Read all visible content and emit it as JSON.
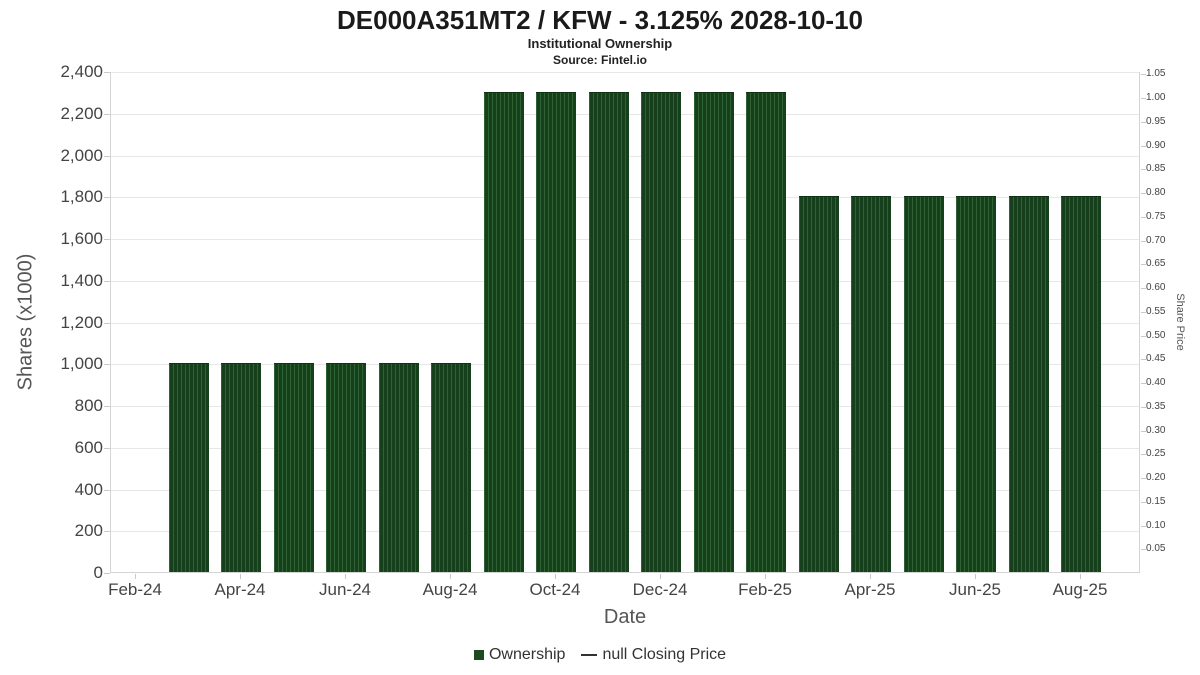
{
  "header": {
    "title": "DE000A351MT2 / KFW - 3.125% 2028-10-10",
    "subtitle": "Institutional Ownership",
    "source": "Source: Fintel.io"
  },
  "chart_data": {
    "type": "bar",
    "title": "DE000A351MT2 / KFW - 3.125% 2028-10-10",
    "subtitle": "Institutional Ownership",
    "source": "Source: Fintel.io",
    "xlabel": "Date",
    "left_axis": {
      "label": "Shares (x1000)",
      "min": 0,
      "max": 2400,
      "step": 200,
      "tick_labels": [
        "0",
        "200",
        "400",
        "600",
        "800",
        "1,000",
        "1,200",
        "1,400",
        "1,600",
        "1,800",
        "2,000",
        "2,200",
        "2,400"
      ]
    },
    "right_axis": {
      "label": "Share Price",
      "range": [
        0,
        1.055
      ],
      "tick_labels": [
        "0.05",
        "0.10",
        "0.15",
        "0.20",
        "0.25",
        "0.30",
        "0.35",
        "0.40",
        "0.45",
        "0.50",
        "0.55",
        "0.60",
        "0.65",
        "0.70",
        "0.75",
        "0.80",
        "0.85",
        "0.90",
        "0.95",
        "1.00",
        "1.05"
      ]
    },
    "x_tick_labels": [
      "Feb-24",
      "Apr-24",
      "Jun-24",
      "Aug-24",
      "Oct-24",
      "Dec-24",
      "Feb-25",
      "Apr-25",
      "Jun-25",
      "Aug-25"
    ],
    "categories": [
      "Mar-24",
      "Apr-24",
      "May-24",
      "Jun-24",
      "Jul-24",
      "Aug-24",
      "Sep-24",
      "Oct-24",
      "Nov-24",
      "Dec-24",
      "Jan-25",
      "Feb-25",
      "Mar-25",
      "Apr-25",
      "May-25",
      "Jun-25",
      "Jul-25",
      "Aug-25"
    ],
    "series": [
      {
        "name": "Ownership",
        "values": [
          1000,
          1000,
          1000,
          1000,
          1000,
          1000,
          2300,
          2300,
          2300,
          2300,
          2300,
          2300,
          1800,
          1800,
          1800,
          1800,
          1800,
          1800
        ],
        "color": "#1d4a22"
      }
    ],
    "legend": [
      {
        "label": "Ownership",
        "marker": "square",
        "color": "#1d4a22"
      },
      {
        "label": "null Closing Price",
        "marker": "line",
        "color": "#333333"
      }
    ],
    "colors": {
      "bar": "#1d4a22",
      "bar_stripe": "#2f6134",
      "grid": "#e7e7e7",
      "border": "#d4d4d4"
    }
  }
}
